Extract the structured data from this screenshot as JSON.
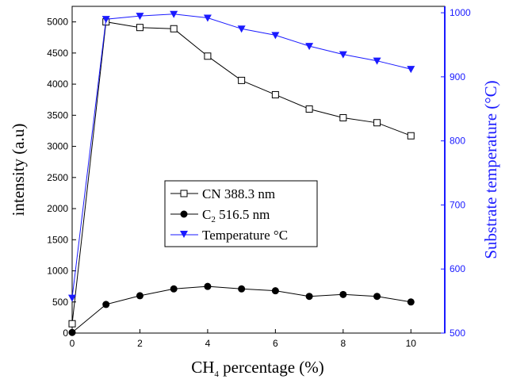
{
  "chart_data": {
    "type": "line",
    "x": [
      0,
      1,
      2,
      3,
      4,
      5,
      6,
      7,
      8,
      9,
      10
    ],
    "xlabel_main": "CH",
    "xlabel_sub": "4",
    "xlabel_rest": " percentage (%)",
    "ylabel": "intensity (a.u)",
    "y2label": "Substrate temperature (°C)",
    "xlim": [
      0,
      11
    ],
    "ylim": [
      0,
      5250
    ],
    "y2lim": [
      500,
      1010
    ],
    "xticks": [
      0,
      2,
      4,
      6,
      8,
      10
    ],
    "yticks": [
      0,
      500,
      1000,
      1500,
      2000,
      2500,
      3000,
      3500,
      4000,
      4500,
      5000
    ],
    "y2ticks": [
      500,
      600,
      700,
      800,
      900,
      1000
    ],
    "colors": {
      "left_axis": "#000000",
      "right_axis": "#1a1aff",
      "temperature": "#1a1aff",
      "cn": "#000000",
      "c2": "#000000"
    },
    "series": [
      {
        "name": "CN 388.3 nm",
        "axis": "left",
        "marker": "open-square",
        "values": [
          150,
          5000,
          4910,
          4890,
          4450,
          4060,
          3830,
          3600,
          3460,
          3380,
          3170
        ]
      },
      {
        "name_main": "C",
        "name_sub": "2",
        "name_rest": " 516.5 nm",
        "axis": "left",
        "marker": "filled-circle",
        "values": [
          10,
          460,
          600,
          710,
          750,
          710,
          680,
          590,
          620,
          590,
          500
        ]
      },
      {
        "name": "Temperature °C",
        "axis": "right",
        "marker": "filled-triangle-down",
        "values": [
          555,
          990,
          995,
          998,
          992,
          975,
          965,
          948,
          935,
          925,
          912
        ]
      }
    ],
    "legend_position": "center-left"
  }
}
